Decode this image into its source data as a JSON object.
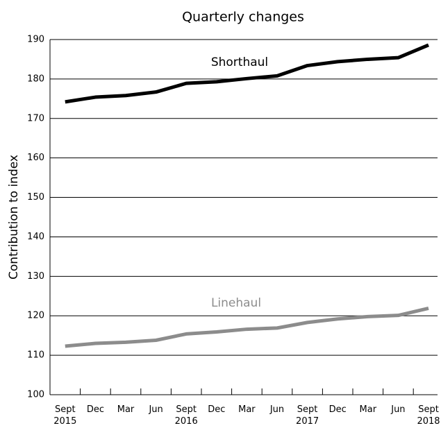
{
  "chart_data": {
    "type": "line",
    "title": "Quarterly changes",
    "y_label": "Contribution to index",
    "categories": [
      "Sept 2015",
      "Dec",
      "Mar",
      "Jun",
      "Sept 2016",
      "Dec",
      "Mar",
      "Jun",
      "Sept 2017",
      "Dec",
      "Mar",
      "Jun",
      "Sept 2018"
    ],
    "series": [
      {
        "name": "Shorthaul",
        "color": "#000000",
        "values": [
          174.2,
          175.4,
          175.8,
          176.7,
          178.9,
          179.3,
          180.1,
          180.8,
          183.4,
          184.4,
          185.0,
          185.4,
          188.6
        ]
      },
      {
        "name": "Linehaul",
        "color": "#8c8c8c",
        "values": [
          112.3,
          113.0,
          113.3,
          113.8,
          115.4,
          115.9,
          116.6,
          116.9,
          118.3,
          119.2,
          119.8,
          120.1,
          121.9
        ]
      }
    ],
    "ylim": [
      100,
      190
    ],
    "yticks": [
      100,
      110,
      120,
      130,
      140,
      150,
      160,
      170,
      180,
      190
    ],
    "grid": true
  }
}
